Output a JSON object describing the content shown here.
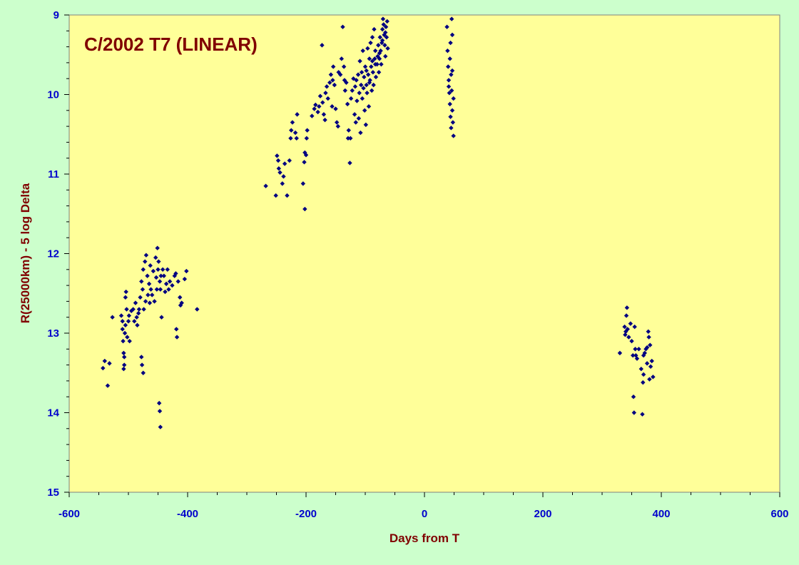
{
  "colors": {
    "background": "#ccffcc",
    "plot_area": "#ffff99",
    "marker": "#000080",
    "title": "#800000",
    "axis_title": "#800000",
    "tick_labels": "#0000cc"
  },
  "chart_data": {
    "type": "scatter",
    "title": "C/2002 T7 (LINEAR)",
    "xlabel": "Days from T",
    "ylabel": "R(25000km) - 5 log Delta",
    "xlim": [
      -600,
      600
    ],
    "ylim": [
      15,
      9
    ],
    "y_inverted": true,
    "grid": false,
    "legend": "none",
    "marker": "diamond",
    "x_ticks": [
      -600,
      -400,
      -200,
      0,
      200,
      400,
      600
    ],
    "x_tick_labels": [
      "-600",
      "-400",
      "-200",
      "0",
      "200",
      "400",
      "600"
    ],
    "y_ticks": [
      9,
      10,
      11,
      12,
      13,
      14,
      15
    ],
    "y_tick_labels": [
      "9",
      "10",
      "11",
      "12",
      "13",
      "14",
      "15"
    ],
    "series": [
      {
        "points": [
          [
            -543,
            13.44
          ],
          [
            -540,
            13.35
          ],
          [
            -535,
            13.66
          ],
          [
            -532,
            13.38
          ],
          [
            -527,
            12.8
          ],
          [
            -512,
            12.78
          ],
          [
            -510,
            12.85
          ],
          [
            -510,
            12.95
          ],
          [
            -509,
            13.1
          ],
          [
            -508,
            13.25
          ],
          [
            -507,
            13.3
          ],
          [
            -507,
            13.4
          ],
          [
            -508,
            13.45
          ],
          [
            -505,
            12.55
          ],
          [
            -504,
            12.48
          ],
          [
            -505,
            12.9
          ],
          [
            -506,
            13.0
          ],
          [
            -503,
            12.7
          ],
          [
            -502,
            13.05
          ],
          [
            -500,
            12.85
          ],
          [
            -499,
            12.78
          ],
          [
            -498,
            13.1
          ],
          [
            -495,
            12.72
          ],
          [
            -492,
            12.7
          ],
          [
            -490,
            12.85
          ],
          [
            -488,
            12.62
          ],
          [
            -486,
            12.8
          ],
          [
            -485,
            12.9
          ],
          [
            -483,
            12.75
          ],
          [
            -482,
            12.7
          ],
          [
            -480,
            12.55
          ],
          [
            -478,
            13.3
          ],
          [
            -477,
            13.4
          ],
          [
            -475,
            13.5
          ],
          [
            -478,
            12.35
          ],
          [
            -476,
            12.45
          ],
          [
            -475,
            12.2
          ],
          [
            -474,
            12.7
          ],
          [
            -472,
            12.1
          ],
          [
            -471,
            12.6
          ],
          [
            -470,
            12.02
          ],
          [
            -468,
            12.28
          ],
          [
            -467,
            12.52
          ],
          [
            -465,
            12.38
          ],
          [
            -464,
            12.62
          ],
          [
            -463,
            12.15
          ],
          [
            -462,
            12.45
          ],
          [
            -460,
            12.52
          ],
          [
            -458,
            12.22
          ],
          [
            -456,
            12.6
          ],
          [
            -454,
            12.05
          ],
          [
            -453,
            12.3
          ],
          [
            -452,
            12.45
          ],
          [
            -451,
            11.93
          ],
          [
            -450,
            12.2
          ],
          [
            -449,
            12.1
          ],
          [
            -447,
            12.35
          ],
          [
            -446,
            12.45
          ],
          [
            -445,
            12.28
          ],
          [
            -448,
            13.88
          ],
          [
            -447,
            13.98
          ],
          [
            -446,
            14.18
          ],
          [
            -444,
            12.8
          ],
          [
            -442,
            12.2
          ],
          [
            -440,
            12.28
          ],
          [
            -438,
            12.48
          ],
          [
            -436,
            12.38
          ],
          [
            -434,
            12.2
          ],
          [
            -432,
            12.45
          ],
          [
            -430,
            12.35
          ],
          [
            -426,
            12.4
          ],
          [
            -422,
            12.28
          ],
          [
            -420,
            12.25
          ],
          [
            -419,
            12.95
          ],
          [
            -418,
            13.05
          ],
          [
            -416,
            12.35
          ],
          [
            -413,
            12.55
          ],
          [
            -412,
            12.65
          ],
          [
            -410,
            12.62
          ],
          [
            -405,
            12.32
          ],
          [
            -402,
            12.22
          ],
          [
            -384,
            12.7
          ],
          [
            -268,
            11.15
          ],
          [
            -251,
            11.27
          ],
          [
            -249,
            10.77
          ],
          [
            -247,
            10.83
          ],
          [
            -246,
            10.93
          ],
          [
            -244,
            10.98
          ],
          [
            -240,
            11.12
          ],
          [
            -238,
            11.03
          ],
          [
            -236,
            10.87
          ],
          [
            -232,
            11.27
          ],
          [
            -228,
            10.83
          ],
          [
            -226,
            10.55
          ],
          [
            -225,
            10.45
          ],
          [
            -223,
            10.35
          ],
          [
            -218,
            10.48
          ],
          [
            -216,
            10.55
          ],
          [
            -215,
            10.25
          ],
          [
            -205,
            11.12
          ],
          [
            -203,
            10.85
          ],
          [
            -202,
            10.73
          ],
          [
            -202,
            11.44
          ],
          [
            -200,
            10.76
          ],
          [
            -199,
            10.55
          ],
          [
            -198,
            10.45
          ],
          [
            -190,
            10.27
          ],
          [
            -186,
            10.18
          ],
          [
            -184,
            10.13
          ],
          [
            -180,
            10.22
          ],
          [
            -178,
            10.15
          ],
          [
            -176,
            10.02
          ],
          [
            -173,
            9.38
          ],
          [
            -172,
            10.1
          ],
          [
            -170,
            10.25
          ],
          [
            -168,
            10.32
          ],
          [
            -167,
            9.98
          ],
          [
            -165,
            9.9
          ],
          [
            -163,
            10.05
          ],
          [
            -160,
            9.85
          ],
          [
            -158,
            9.75
          ],
          [
            -156,
            10.15
          ],
          [
            -155,
            9.82
          ],
          [
            -154,
            9.65
          ],
          [
            -152,
            9.88
          ],
          [
            -150,
            10.18
          ],
          [
            -148,
            10.35
          ],
          [
            -146,
            10.4
          ],
          [
            -145,
            9.72
          ],
          [
            -142,
            9.75
          ],
          [
            -140,
            9.55
          ],
          [
            -138,
            9.15
          ],
          [
            -136,
            9.65
          ],
          [
            -135,
            9.82
          ],
          [
            -134,
            9.95
          ],
          [
            -132,
            9.85
          ],
          [
            -130,
            10.12
          ],
          [
            -129,
            10.55
          ],
          [
            -128,
            10.45
          ],
          [
            -126,
            10.86
          ],
          [
            -125,
            10.55
          ],
          [
            -124,
            10.05
          ],
          [
            -122,
            9.95
          ],
          [
            -120,
            9.8
          ],
          [
            -118,
            10.25
          ],
          [
            -117,
            9.9
          ],
          [
            -116,
            10.35
          ],
          [
            -115,
            9.82
          ],
          [
            -114,
            10.08
          ],
          [
            -112,
            9.75
          ],
          [
            -111,
            10.3
          ],
          [
            -110,
            9.98
          ],
          [
            -109,
            9.58
          ],
          [
            -108,
            10.48
          ],
          [
            -107,
            9.88
          ],
          [
            -106,
            9.72
          ],
          [
            -105,
            10.05
          ],
          [
            -104,
            9.45
          ],
          [
            -103,
            9.92
          ],
          [
            -102,
            9.78
          ],
          [
            -101,
            10.2
          ],
          [
            -100,
            9.65
          ],
          [
            -99,
            10.38
          ],
          [
            -98,
            9.88
          ],
          [
            -97,
            9.98
          ],
          [
            -96,
            9.42
          ],
          [
            -95,
            9.75
          ],
          [
            -94,
            10.15
          ],
          [
            -93,
            9.55
          ],
          [
            -92,
            9.82
          ],
          [
            -91,
            9.35
          ],
          [
            -90,
            9.65
          ],
          [
            -89,
            9.95
          ],
          [
            -88,
            9.28
          ],
          [
            -87,
            9.72
          ],
          [
            -86,
            9.88
          ],
          [
            -85,
            9.18
          ],
          [
            -84,
            9.55
          ],
          [
            -83,
            9.45
          ],
          [
            -82,
            9.78
          ],
          [
            -80,
            9.62
          ],
          [
            -79,
            9.52
          ],
          [
            -78,
            9.38
          ],
          [
            -77,
            9.72
          ],
          [
            -76,
            9.55
          ],
          [
            -75,
            9.28
          ],
          [
            -74,
            9.45
          ],
          [
            -73,
            9.62
          ],
          [
            -72,
            9.35
          ],
          [
            -71,
            9.18
          ],
          [
            -70,
            9.05
          ],
          [
            -69,
            9.12
          ],
          [
            -68,
            9.25
          ],
          [
            -67,
            9.38
          ],
          [
            -66,
            9.52
          ],
          [
            -65,
            9.15
          ],
          [
            -64,
            9.28
          ],
          [
            -63,
            9.08
          ],
          [
            -62,
            9.42
          ],
          [
            -98,
            9.7
          ],
          [
            -93,
            9.85
          ],
          [
            -88,
            9.58
          ],
          [
            -83,
            9.62
          ],
          [
            -76,
            9.48
          ],
          [
            -71,
            9.32
          ],
          [
            -66,
            9.22
          ],
          [
            38,
            9.15
          ],
          [
            39,
            9.45
          ],
          [
            40,
            9.65
          ],
          [
            41,
            9.82
          ],
          [
            42,
            9.98
          ],
          [
            43,
            10.12
          ],
          [
            44,
            10.28
          ],
          [
            45,
            10.42
          ],
          [
            46,
            9.05
          ],
          [
            47,
            9.25
          ],
          [
            44,
            9.35
          ],
          [
            45,
            9.75
          ],
          [
            46,
            9.95
          ],
          [
            47,
            10.2
          ],
          [
            48,
            10.35
          ],
          [
            49,
            10.52
          ],
          [
            41,
            9.9
          ],
          [
            43,
            9.55
          ],
          [
            47,
            9.7
          ],
          [
            49,
            10.05
          ],
          [
            330,
            13.25
          ],
          [
            338,
            12.92
          ],
          [
            339,
            13.02
          ],
          [
            340,
            12.98
          ],
          [
            341,
            12.78
          ],
          [
            342,
            12.68
          ],
          [
            343,
            12.95
          ],
          [
            345,
            13.05
          ],
          [
            348,
            12.88
          ],
          [
            350,
            13.1
          ],
          [
            352,
            13.28
          ],
          [
            353,
            13.8
          ],
          [
            354,
            14.0
          ],
          [
            355,
            12.92
          ],
          [
            356,
            13.2
          ],
          [
            357,
            13.28
          ],
          [
            359,
            13.32
          ],
          [
            362,
            13.2
          ],
          [
            366,
            13.45
          ],
          [
            368,
            14.02
          ],
          [
            369,
            13.62
          ],
          [
            370,
            13.52
          ],
          [
            372,
            13.25
          ],
          [
            374,
            13.2
          ],
          [
            376,
            13.38
          ],
          [
            378,
            12.98
          ],
          [
            379,
            13.05
          ],
          [
            380,
            13.58
          ],
          [
            381,
            13.15
          ],
          [
            382,
            13.42
          ],
          [
            384,
            13.35
          ],
          [
            386,
            13.55
          ],
          [
            376,
            13.18
          ],
          [
            370,
            13.28
          ]
        ]
      }
    ]
  }
}
